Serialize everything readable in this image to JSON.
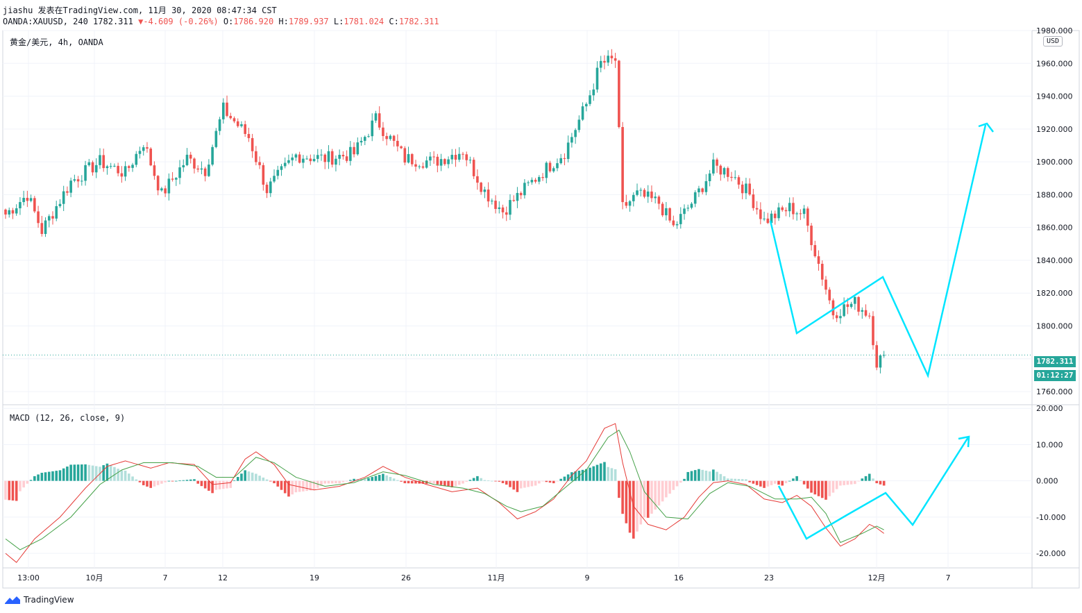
{
  "header": {
    "line1": "jiashu 发表在TradingView.com, 11月 30, 2020 08:47:34 CST",
    "symbol": "OANDA:XAUUSD, 240 1782.311",
    "change_arrow": "▼",
    "change": "-4.609 (-0.26%)",
    "o_label": "O:",
    "o": "1786.920",
    "h_label": "H:",
    "h": "1789.937",
    "l_label": "L:",
    "l": "1781.024",
    "c_label": "C:",
    "c": "1782.311"
  },
  "legend": "黄金/美元, 4h, OANDA",
  "macd_legend": "MACD (12, 26, close, 9)",
  "currency": "USD",
  "last_price": "1782.311",
  "countdown": "01:12:27",
  "brand": "TradingView",
  "colors": {
    "up": "#26a69a",
    "down": "#ef5350",
    "forecast": "#00e5ff",
    "macd": "#e53935",
    "signal": "#43a047"
  },
  "chart_data": [
    {
      "type": "candlestick",
      "title": "黄金/美元, 4h, OANDA",
      "ylim": [
        1752,
        1980
      ],
      "y_ticks": [
        "1760.000",
        "1780.000",
        "1800.000",
        "1820.000",
        "1840.000",
        "1860.000",
        "1880.000",
        "1900.000",
        "1920.000",
        "1940.000",
        "1960.000",
        "1980.000"
      ],
      "x_ticks": [
        "13:00",
        "10月",
        "7",
        "12",
        "19",
        "26",
        "11月",
        "9",
        "16",
        "23",
        "12月",
        "7"
      ],
      "waypoints": [
        [
          0,
          1868
        ],
        [
          6,
          1880
        ],
        [
          10,
          1858
        ],
        [
          18,
          1888
        ],
        [
          26,
          1900
        ],
        [
          33,
          1893
        ],
        [
          38,
          1912
        ],
        [
          43,
          1880
        ],
        [
          50,
          1902
        ],
        [
          55,
          1895
        ],
        [
          60,
          1932
        ],
        [
          67,
          1915
        ],
        [
          72,
          1883
        ],
        [
          80,
          1904
        ],
        [
          88,
          1902
        ],
        [
          96,
          1905
        ],
        [
          102,
          1926
        ],
        [
          110,
          1902
        ],
        [
          118,
          1900
        ],
        [
          126,
          1907
        ],
        [
          132,
          1882
        ],
        [
          137,
          1870
        ],
        [
          146,
          1890
        ],
        [
          154,
          1906
        ],
        [
          160,
          1935
        ],
        [
          164,
          1960
        ],
        [
          168,
          1962
        ],
        [
          170,
          1872
        ],
        [
          174,
          1880
        ],
        [
          180,
          1875
        ],
        [
          184,
          1860
        ],
        [
          190,
          1878
        ],
        [
          195,
          1897
        ],
        [
          200,
          1893
        ],
        [
          205,
          1880
        ],
        [
          209,
          1864
        ],
        [
          216,
          1872
        ],
        [
          220,
          1868
        ],
        [
          224,
          1838
        ],
        [
          228,
          1808
        ],
        [
          234,
          1814
        ],
        [
          238,
          1807
        ],
        [
          240,
          1778
        ],
        [
          242,
          1782
        ]
      ],
      "last_price": 1782.311,
      "forecast_path": [
        [
          1110,
          318
        ],
        [
          1148,
          480
        ],
        [
          1272,
          399
        ],
        [
          1337,
          541
        ],
        [
          1420,
          180
        ]
      ],
      "forecast_arrow": [
        [
          1410,
          182
        ],
        [
          1422,
          178
        ],
        [
          1431,
          190
        ]
      ]
    },
    {
      "type": "macd",
      "title": "MACD (12, 26, close, 9)",
      "ylim": [
        -24,
        21
      ],
      "y_ticks": [
        "20.000",
        "10.000",
        "0.000",
        "-10.000",
        "-20.000"
      ],
      "macd_points": [
        [
          0,
          -20
        ],
        [
          3,
          -22.5
        ],
        [
          8,
          -16
        ],
        [
          15,
          -10
        ],
        [
          22,
          -2
        ],
        [
          28,
          4
        ],
        [
          33,
          5.5
        ],
        [
          40,
          3.5
        ],
        [
          45,
          5
        ],
        [
          52,
          4.5
        ],
        [
          57,
          -1
        ],
        [
          62,
          -0.5
        ],
        [
          66,
          6
        ],
        [
          69,
          8
        ],
        [
          74,
          4.5
        ],
        [
          78,
          -1
        ],
        [
          85,
          -2.5
        ],
        [
          92,
          -1.5
        ],
        [
          99,
          1
        ],
        [
          104,
          4
        ],
        [
          110,
          1
        ],
        [
          116,
          -1
        ],
        [
          123,
          -3
        ],
        [
          130,
          -2
        ],
        [
          136,
          -6
        ],
        [
          141,
          -10.5
        ],
        [
          146,
          -8.5
        ],
        [
          151,
          -5
        ],
        [
          156,
          1.5
        ],
        [
          160,
          5.5
        ],
        [
          165,
          14.5
        ],
        [
          168,
          15.8
        ],
        [
          170,
          5
        ],
        [
          173,
          -7
        ],
        [
          177,
          -12
        ],
        [
          182,
          -13.5
        ],
        [
          187,
          -10
        ],
        [
          191,
          -4.5
        ],
        [
          195,
          -0.5
        ],
        [
          199,
          0
        ],
        [
          204,
          -1
        ],
        [
          209,
          -5
        ],
        [
          214,
          -6
        ],
        [
          218,
          -4
        ],
        [
          222,
          -7
        ],
        [
          226,
          -13
        ],
        [
          230,
          -18
        ],
        [
          234,
          -16
        ],
        [
          238,
          -12
        ],
        [
          240,
          -13
        ],
        [
          242,
          -14.5
        ]
      ],
      "signal_points": [
        [
          0,
          -16
        ],
        [
          4,
          -19
        ],
        [
          10,
          -16
        ],
        [
          18,
          -10
        ],
        [
          26,
          -1
        ],
        [
          32,
          3
        ],
        [
          38,
          5
        ],
        [
          46,
          5
        ],
        [
          53,
          4
        ],
        [
          58,
          1
        ],
        [
          63,
          1
        ],
        [
          69,
          6.5
        ],
        [
          74,
          5
        ],
        [
          80,
          1
        ],
        [
          88,
          -1.5
        ],
        [
          96,
          -0.5
        ],
        [
          104,
          2.5
        ],
        [
          110,
          1.5
        ],
        [
          118,
          -1
        ],
        [
          126,
          -2
        ],
        [
          132,
          -3.5
        ],
        [
          138,
          -7
        ],
        [
          142,
          -8.5
        ],
        [
          148,
          -7
        ],
        [
          154,
          -2
        ],
        [
          160,
          3
        ],
        [
          166,
          12
        ],
        [
          169,
          14
        ],
        [
          172,
          8
        ],
        [
          176,
          -3
        ],
        [
          182,
          -10
        ],
        [
          188,
          -10.5
        ],
        [
          194,
          -3.5
        ],
        [
          199,
          -0.5
        ],
        [
          205,
          -1.5
        ],
        [
          212,
          -5
        ],
        [
          218,
          -5
        ],
        [
          222,
          -4.5
        ],
        [
          226,
          -9
        ],
        [
          230,
          -17
        ],
        [
          236,
          -14.5
        ],
        [
          240,
          -12.5
        ],
        [
          242,
          -13.5
        ]
      ],
      "forecast_path": [
        [
          1122,
          700
        ],
        [
          1162,
          776
        ],
        [
          1220,
          742
        ],
        [
          1276,
          710
        ],
        [
          1315,
          756
        ],
        [
          1395,
          630
        ]
      ],
      "forecast_arrow": [
        [
          1381,
          632
        ],
        [
          1396,
          629
        ],
        [
          1395,
          644
        ]
      ]
    }
  ]
}
